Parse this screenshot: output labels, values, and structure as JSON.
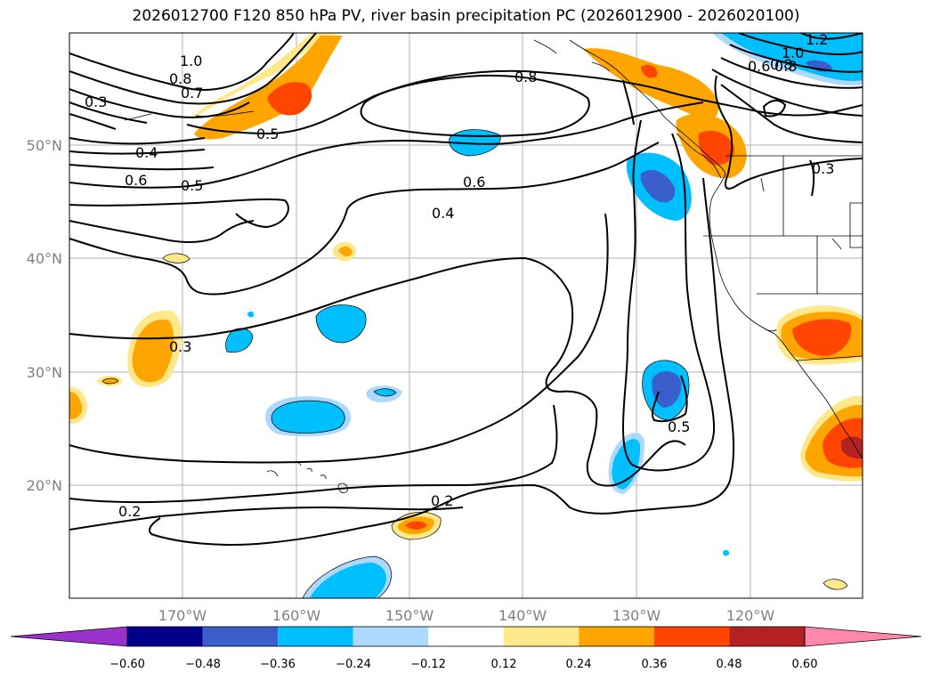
{
  "title": "2026012700 F120 850 hPa PV, river basin precipitation PC (2026012900 - 2026020100)",
  "map": {
    "lat_labels": [
      "50°N",
      "40°N",
      "30°N",
      "20°N"
    ],
    "lon_labels": [
      "170°W",
      "160°W",
      "150°W",
      "140°W",
      "130°W",
      "120°W"
    ],
    "contour_labels": [
      "1.2",
      "1.0",
      "0.8",
      "0.6",
      "0.8",
      "1.0",
      "0.8",
      "0.7",
      "0.3",
      "0.5",
      "0.4",
      "0.6",
      "0.5",
      "0.6",
      "0.4",
      "0.3",
      "0.5",
      "0.2",
      "0.2",
      "0.3",
      "0.8"
    ]
  },
  "colorbar": {
    "ticks": [
      "−0.60",
      "−0.48",
      "−0.36",
      "−0.24",
      "−0.12",
      "0.12",
      "0.24",
      "0.36",
      "0.48",
      "0.60"
    ],
    "colors": [
      "#9932cc",
      "#00008b",
      "#3a5fcd",
      "#00bfff",
      "#add8ff",
      "#ffffff",
      "#ffe88a",
      "#ffa500",
      "#ff4500",
      "#b22222",
      "#ff88aa"
    ]
  }
}
